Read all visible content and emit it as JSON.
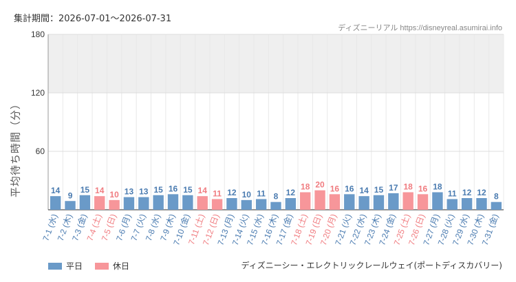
{
  "header": {
    "period": "集計期間：2026-07-01～2026-07-31",
    "credit": "ディズニーリアル https://disneyreal.asumirai.info"
  },
  "chart_data": {
    "type": "bar",
    "ylabel": "平均待ち時間（分）",
    "ylim": [
      0,
      180
    ],
    "yticks": [
      60,
      120,
      180
    ],
    "band_120_to_180": true,
    "categories": [
      "7-1 (水)",
      "7-2 (木)",
      "7-3 (金)",
      "7-4 (土)",
      "7-5 (日)",
      "7-6 (月)",
      "7-7 (火)",
      "7-8 (水)",
      "7-9 (木)",
      "7-10 (金)",
      "7-11 (土)",
      "7-12 (日)",
      "7-13 (月)",
      "7-14 (火)",
      "7-15 (水)",
      "7-16 (木)",
      "7-17 (金)",
      "7-18 (土)",
      "7-19 (日)",
      "7-20 (月)",
      "7-21 (火)",
      "7-22 (水)",
      "7-23 (木)",
      "7-24 (金)",
      "7-25 (土)",
      "7-26 (日)",
      "7-27 (月)",
      "7-28 (火)",
      "7-29 (水)",
      "7-30 (木)",
      "7-31 (金)"
    ],
    "values": [
      14,
      9,
      15,
      14,
      10,
      13,
      13,
      15,
      16,
      15,
      14,
      11,
      12,
      10,
      11,
      8,
      12,
      18,
      20,
      16,
      16,
      14,
      15,
      17,
      18,
      16,
      18,
      11,
      12,
      12,
      8
    ],
    "day_type": [
      "平日",
      "平日",
      "平日",
      "休日",
      "休日",
      "平日",
      "平日",
      "平日",
      "平日",
      "平日",
      "休日",
      "休日",
      "平日",
      "平日",
      "平日",
      "平日",
      "平日",
      "休日",
      "休日",
      "休日",
      "平日",
      "平日",
      "平日",
      "平日",
      "休日",
      "休日",
      "平日",
      "平日",
      "平日",
      "平日",
      "平日"
    ],
    "series": [
      {
        "name": "平日",
        "color": "#6a9ac8"
      },
      {
        "name": "休日",
        "color": "#f7969a"
      }
    ],
    "label_colors": {
      "平日": "#4a7bb0",
      "休日": "#f07c80"
    }
  },
  "legend_placement": "bottom-left",
  "footer": {
    "attraction": "ディズニーシー・エレクトリックレールウェイ(ポートディスカバリー)"
  }
}
